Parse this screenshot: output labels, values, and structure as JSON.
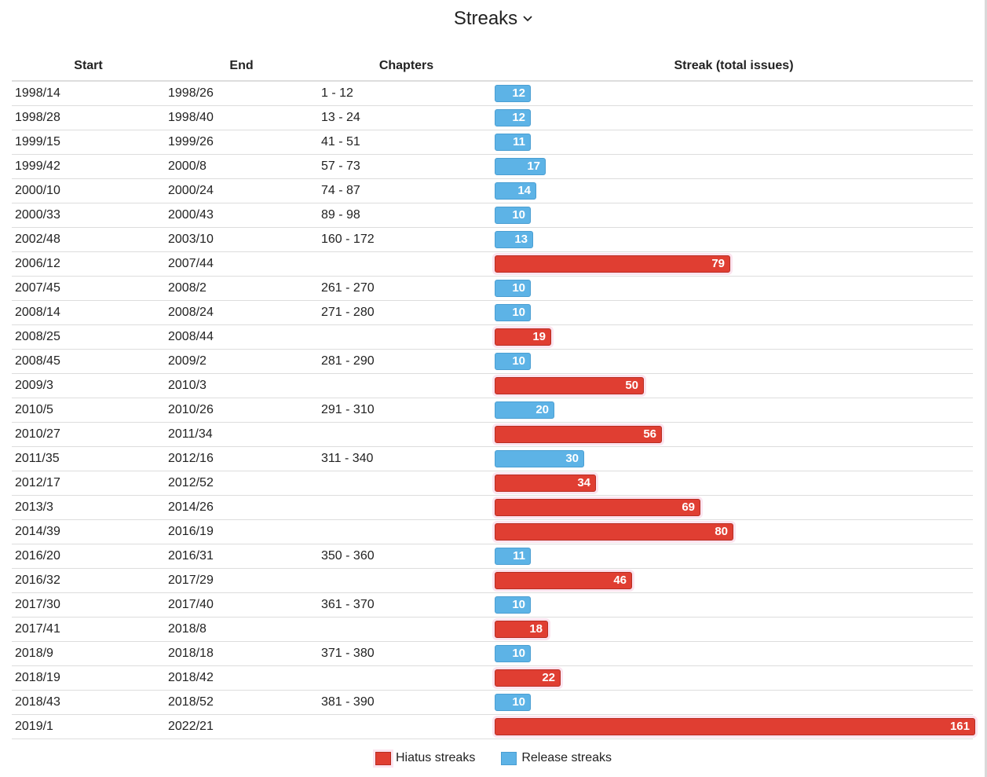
{
  "title": "Streaks",
  "columns": {
    "start": "Start",
    "end": "End",
    "chapters": "Chapters",
    "streak": "Streak (total issues)"
  },
  "legend": {
    "hiatus": "Hiatus streaks",
    "release": "Release streaks"
  },
  "colors": {
    "hiatus": "#e03e32",
    "release": "#5db3e6"
  },
  "max_value": 161,
  "rows": [
    {
      "start": "1998/14",
      "end": "1998/26",
      "chapters": "1 - 12",
      "value": 12,
      "type": "release"
    },
    {
      "start": "1998/28",
      "end": "1998/40",
      "chapters": "13 - 24",
      "value": 12,
      "type": "release"
    },
    {
      "start": "1999/15",
      "end": "1999/26",
      "chapters": "41 - 51",
      "value": 11,
      "type": "release"
    },
    {
      "start": "1999/42",
      "end": "2000/8",
      "chapters": "57 - 73",
      "value": 17,
      "type": "release"
    },
    {
      "start": "2000/10",
      "end": "2000/24",
      "chapters": "74 - 87",
      "value": 14,
      "type": "release"
    },
    {
      "start": "2000/33",
      "end": "2000/43",
      "chapters": "89 - 98",
      "value": 10,
      "type": "release"
    },
    {
      "start": "2002/48",
      "end": "2003/10",
      "chapters": "160 - 172",
      "value": 13,
      "type": "release"
    },
    {
      "start": "2006/12",
      "end": "2007/44",
      "chapters": "",
      "value": 79,
      "type": "hiatus"
    },
    {
      "start": "2007/45",
      "end": "2008/2",
      "chapters": "261 - 270",
      "value": 10,
      "type": "release"
    },
    {
      "start": "2008/14",
      "end": "2008/24",
      "chapters": "271 - 280",
      "value": 10,
      "type": "release"
    },
    {
      "start": "2008/25",
      "end": "2008/44",
      "chapters": "",
      "value": 19,
      "type": "hiatus"
    },
    {
      "start": "2008/45",
      "end": "2009/2",
      "chapters": "281 - 290",
      "value": 10,
      "type": "release"
    },
    {
      "start": "2009/3",
      "end": "2010/3",
      "chapters": "",
      "value": 50,
      "type": "hiatus"
    },
    {
      "start": "2010/5",
      "end": "2010/26",
      "chapters": "291 - 310",
      "value": 20,
      "type": "release"
    },
    {
      "start": "2010/27",
      "end": "2011/34",
      "chapters": "",
      "value": 56,
      "type": "hiatus"
    },
    {
      "start": "2011/35",
      "end": "2012/16",
      "chapters": "311 - 340",
      "value": 30,
      "type": "release"
    },
    {
      "start": "2012/17",
      "end": "2012/52",
      "chapters": "",
      "value": 34,
      "type": "hiatus"
    },
    {
      "start": "2013/3",
      "end": "2014/26",
      "chapters": "",
      "value": 69,
      "type": "hiatus"
    },
    {
      "start": "2014/39",
      "end": "2016/19",
      "chapters": "",
      "value": 80,
      "type": "hiatus"
    },
    {
      "start": "2016/20",
      "end": "2016/31",
      "chapters": "350 - 360",
      "value": 11,
      "type": "release"
    },
    {
      "start": "2016/32",
      "end": "2017/29",
      "chapters": "",
      "value": 46,
      "type": "hiatus"
    },
    {
      "start": "2017/30",
      "end": "2017/40",
      "chapters": "361 - 370",
      "value": 10,
      "type": "release"
    },
    {
      "start": "2017/41",
      "end": "2018/8",
      "chapters": "",
      "value": 18,
      "type": "hiatus"
    },
    {
      "start": "2018/9",
      "end": "2018/18",
      "chapters": "371 - 380",
      "value": 10,
      "type": "release"
    },
    {
      "start": "2018/19",
      "end": "2018/42",
      "chapters": "",
      "value": 22,
      "type": "hiatus"
    },
    {
      "start": "2018/43",
      "end": "2018/52",
      "chapters": "381 - 390",
      "value": 10,
      "type": "release"
    },
    {
      "start": "2019/1",
      "end": "2022/21",
      "chapters": "",
      "value": 161,
      "type": "hiatus"
    }
  ]
}
